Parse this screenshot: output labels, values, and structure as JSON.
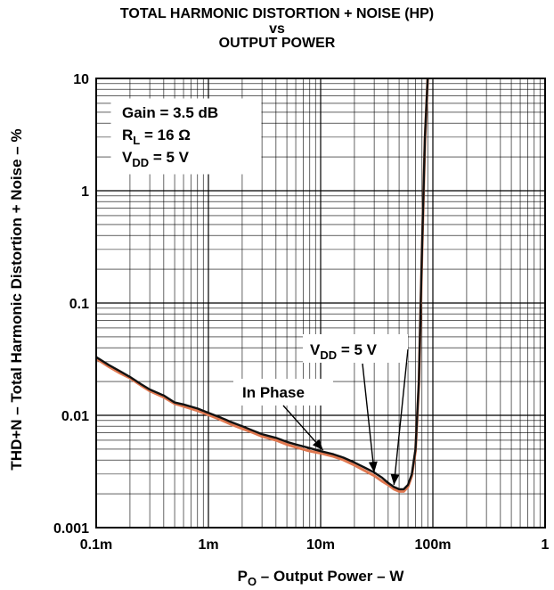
{
  "chart_data": {
    "type": "line",
    "title_lines": [
      "TOTAL HARMONIC DISTORTION + NOISE (HP)",
      "vs",
      "OUTPUT POWER"
    ],
    "xlabel": {
      "main": "P",
      "sub": "O",
      "rest": " – Output Power – W"
    },
    "ylabel": "THD+N – Total Harmonic Distortion + Noise – %",
    "xscale": "log",
    "yscale": "log",
    "xlim": [
      0.0001,
      1
    ],
    "ylim": [
      0.001,
      10
    ],
    "grid": true,
    "xticks": [
      {
        "value": 0.0001,
        "label": "0.1m"
      },
      {
        "value": 0.001,
        "label": "1m"
      },
      {
        "value": 0.01,
        "label": "10m"
      },
      {
        "value": 0.1,
        "label": "100m"
      },
      {
        "value": 1,
        "label": "1"
      }
    ],
    "yticks": [
      {
        "value": 0.001,
        "label": "0.001"
      },
      {
        "value": 0.01,
        "label": "0.01"
      },
      {
        "value": 0.1,
        "label": "0.1"
      },
      {
        "value": 1,
        "label": "1"
      },
      {
        "value": 10,
        "label": "10"
      }
    ],
    "conditions": [
      {
        "main": "Gain = 3.5 dB"
      },
      {
        "main": "R",
        "sub": "L",
        "rest": " = 16 Ω"
      },
      {
        "main": "V",
        "sub": "DD",
        "rest": " = 5 V"
      }
    ],
    "annotations": [
      {
        "main": "V",
        "sub": "DD",
        "rest": " = 5 V",
        "target_series": 0
      },
      {
        "main": "In Phase",
        "target_series": 1
      }
    ],
    "series": [
      {
        "color": "#111111",
        "x": [
          0.0001,
          0.00013,
          0.00016,
          0.0002,
          0.00025,
          0.0003,
          0.0004,
          0.0005,
          0.0006,
          0.0008,
          0.001,
          0.0013,
          0.0016,
          0.002,
          0.0025,
          0.003,
          0.004,
          0.005,
          0.006,
          0.008,
          0.01,
          0.013,
          0.016,
          0.02,
          0.025,
          0.03,
          0.035,
          0.04,
          0.045,
          0.05,
          0.055,
          0.06,
          0.065,
          0.07,
          0.075,
          0.08,
          0.085,
          0.09
        ],
        "y": [
          0.033,
          0.028,
          0.025,
          0.022,
          0.019,
          0.017,
          0.015,
          0.013,
          0.0125,
          0.0115,
          0.0105,
          0.0095,
          0.0087,
          0.008,
          0.0073,
          0.0068,
          0.0063,
          0.0058,
          0.0055,
          0.0051,
          0.0048,
          0.0045,
          0.0042,
          0.0038,
          0.0034,
          0.0031,
          0.0028,
          0.0025,
          0.0023,
          0.0022,
          0.0022,
          0.0024,
          0.003,
          0.005,
          0.02,
          0.3,
          3.0,
          10.0
        ]
      },
      {
        "color": "#e07850",
        "x": [
          0.0001,
          0.00013,
          0.00016,
          0.0002,
          0.00025,
          0.0003,
          0.0004,
          0.0005,
          0.0006,
          0.0008,
          0.001,
          0.0013,
          0.0016,
          0.002,
          0.0025,
          0.003,
          0.004,
          0.005,
          0.006,
          0.008,
          0.01,
          0.013,
          0.016,
          0.02,
          0.025,
          0.03,
          0.035,
          0.04,
          0.045,
          0.05,
          0.055,
          0.06,
          0.065,
          0.07,
          0.075,
          0.08,
          0.085,
          0.09
        ],
        "y": [
          0.032,
          0.027,
          0.024,
          0.0215,
          0.0185,
          0.0165,
          0.0145,
          0.0127,
          0.012,
          0.011,
          0.0101,
          0.0091,
          0.0083,
          0.0076,
          0.007,
          0.0065,
          0.006,
          0.0055,
          0.0052,
          0.0048,
          0.0046,
          0.0043,
          0.004,
          0.0036,
          0.0032,
          0.0029,
          0.0026,
          0.0024,
          0.0022,
          0.0021,
          0.0021,
          0.0023,
          0.0029,
          0.0048,
          0.019,
          0.28,
          2.8,
          10.0
        ]
      }
    ]
  }
}
